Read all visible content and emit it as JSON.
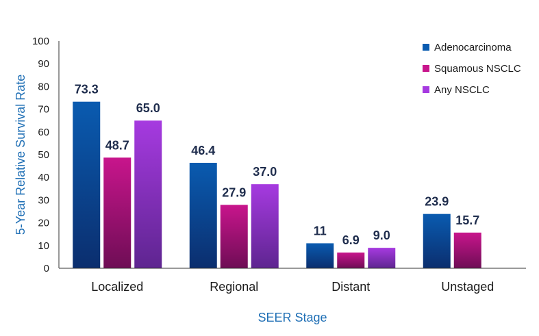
{
  "chart_data": {
    "type": "bar",
    "title": "",
    "xlabel": "SEER Stage",
    "ylabel": "5-Year Relative Survival Rate",
    "ylim": [
      0,
      100
    ],
    "yticks": [
      "0",
      "10",
      "20",
      "30",
      "40",
      "50",
      "60",
      "70",
      "80",
      "90",
      "100"
    ],
    "grid": false,
    "legend_position": "top-right",
    "categories": [
      "Localized",
      "Regional",
      "Distant",
      "Unstaged"
    ],
    "series": [
      {
        "name": "Adenocarcinoma",
        "values": [
          73.3,
          46.4,
          11,
          23.9
        ],
        "labels": [
          "73.3",
          "46.4",
          "11",
          "23.9"
        ],
        "color": "#0a5bb0",
        "color_dark": "#0b2e6e"
      },
      {
        "name": "Squamous NSCLC",
        "values": [
          48.7,
          27.9,
          6.9,
          15.7
        ],
        "labels": [
          "48.7",
          "27.9",
          "6.9",
          "15.7"
        ],
        "color": "#c8158c",
        "color_dark": "#6e0d55"
      },
      {
        "name": "Any NSCLC",
        "values": [
          65.0,
          37.0,
          9.0,
          null
        ],
        "labels": [
          "65.0",
          "37.0",
          "9.0",
          ""
        ],
        "color": "#a63ae0",
        "color_dark": "#5e2590"
      }
    ],
    "axis_title_color": "#1f6fb5"
  }
}
